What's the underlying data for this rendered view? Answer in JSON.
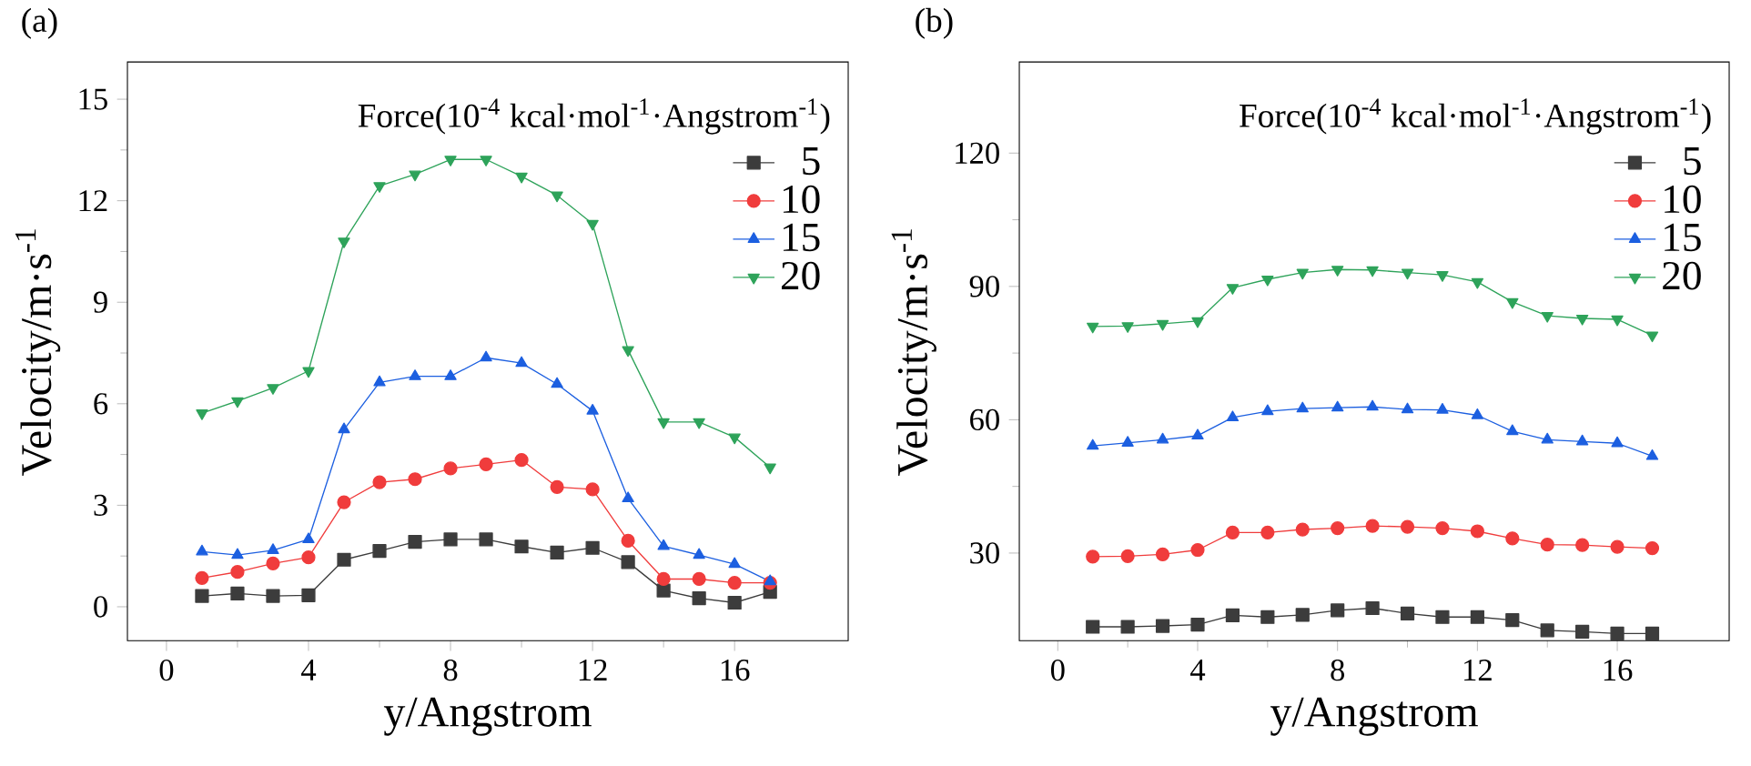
{
  "chart_data": [
    {
      "type": "line",
      "title": "(a)",
      "xlabel": "y/Angstrom",
      "ylabel": "Velocity/m·s$^{-1}$",
      "legend_title": "Force(10$^{-4}$ kcal·mol$^{-1}$·Angstrom$^{-1}$)",
      "legend": "top right",
      "x": [
        1,
        2,
        3,
        4,
        5,
        6,
        7,
        8,
        9,
        10,
        11,
        12,
        13,
        14,
        15,
        16,
        17
      ],
      "xlim": [
        -1.1,
        19.2
      ],
      "ylim": [
        -1,
        16.1
      ],
      "xticks": [
        0,
        4,
        8,
        12,
        16
      ],
      "yticks": [
        0,
        3,
        6,
        9,
        12,
        15
      ],
      "series": [
        {
          "name": "5",
          "color": "#3c3c3c",
          "marker": "square",
          "values": [
            0.32,
            0.39,
            0.32,
            0.34,
            1.39,
            1.65,
            1.92,
            1.99,
            1.99,
            1.78,
            1.6,
            1.74,
            1.32,
            0.48,
            0.25,
            0.12,
            0.44
          ]
        },
        {
          "name": "10",
          "color": "#f03c3c",
          "marker": "circle",
          "values": [
            0.85,
            1.03,
            1.28,
            1.46,
            3.09,
            3.68,
            3.77,
            4.09,
            4.21,
            4.34,
            3.54,
            3.47,
            1.95,
            0.82,
            0.82,
            0.71,
            0.71
          ]
        },
        {
          "name": "15",
          "color": "#1c5fe0",
          "marker": "triangle",
          "values": [
            1.63,
            1.53,
            1.67,
            1.99,
            5.24,
            6.63,
            6.81,
            6.81,
            7.36,
            7.2,
            6.58,
            5.79,
            3.2,
            1.79,
            1.53,
            1.26,
            0.75
          ]
        },
        {
          "name": "20",
          "color": "#2ea35a",
          "marker": "triangle-down",
          "values": [
            5.72,
            6.08,
            6.47,
            6.97,
            10.8,
            12.44,
            12.78,
            13.22,
            13.22,
            12.72,
            12.16,
            11.32,
            7.59,
            5.46,
            5.46,
            5.01,
            4.12
          ]
        }
      ]
    },
    {
      "type": "line",
      "title": "(b)",
      "xlabel": "y/Angstrom",
      "ylabel": "Velocity/m·s$^{-1}$",
      "legend_title": "Force(10$^{-4}$ kcal·mol$^{-1}$·Angstrom$^{-1}$)",
      "legend": "top right",
      "x": [
        1,
        2,
        3,
        4,
        5,
        6,
        7,
        8,
        9,
        10,
        11,
        12,
        13,
        14,
        15,
        16,
        17
      ],
      "xlim": [
        -1.1,
        19.2
      ],
      "ylim": [
        10.3,
        140.5
      ],
      "xticks": [
        0,
        4,
        8,
        12,
        16
      ],
      "yticks": [
        30,
        60,
        90,
        120
      ],
      "series": [
        {
          "name": "5",
          "color": "#3c3c3c",
          "marker": "square",
          "values": [
            13.4,
            13.4,
            13.6,
            13.9,
            16.0,
            15.6,
            16.1,
            17.1,
            17.6,
            16.4,
            15.6,
            15.6,
            14.9,
            12.6,
            12.3,
            11.9,
            11.9
          ]
        },
        {
          "name": "10",
          "color": "#f03c3c",
          "marker": "circle",
          "values": [
            29.2,
            29.3,
            29.7,
            30.7,
            34.6,
            34.6,
            35.3,
            35.6,
            36.1,
            35.9,
            35.6,
            34.9,
            33.3,
            31.9,
            31.8,
            31.4,
            31.1
          ]
        },
        {
          "name": "15",
          "color": "#1c5fe0",
          "marker": "triangle",
          "values": [
            54.1,
            54.8,
            55.5,
            56.4,
            60.5,
            61.9,
            62.5,
            62.7,
            62.9,
            62.3,
            62.2,
            61.0,
            57.4,
            55.5,
            55.1,
            54.7,
            51.8
          ]
        },
        {
          "name": "20",
          "color": "#2ea35a",
          "marker": "triangle-down",
          "values": [
            81.0,
            81.1,
            81.6,
            82.2,
            89.7,
            91.6,
            93.1,
            93.8,
            93.7,
            93.1,
            92.6,
            91.0,
            86.5,
            83.4,
            82.8,
            82.6,
            79.0
          ]
        }
      ]
    }
  ]
}
